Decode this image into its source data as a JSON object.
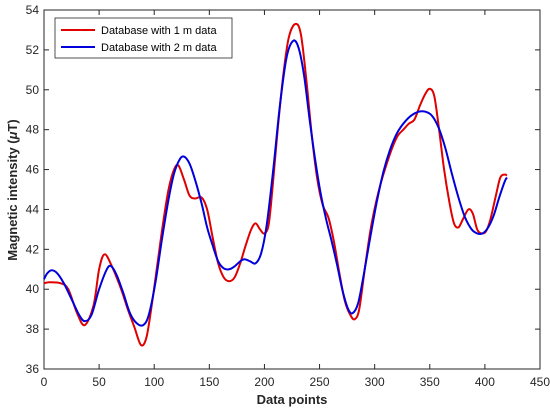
{
  "chart_data": {
    "type": "line",
    "title": "",
    "xlabel": "Data points",
    "ylabel_prefix": "Magnetic intensity (",
    "ylabel_symbol": "μ",
    "ylabel_suffix": "T)",
    "xlim": [
      0,
      450
    ],
    "ylim": [
      36,
      54
    ],
    "xticks": [
      0,
      50,
      100,
      150,
      200,
      250,
      300,
      350,
      400,
      450
    ],
    "yticks": [
      36,
      38,
      40,
      42,
      44,
      46,
      48,
      50,
      52,
      54
    ],
    "grid": false,
    "legend": {
      "placement": "top-left"
    },
    "series": [
      {
        "name": "Database with 1 m data",
        "color": "#e00000",
        "points": [
          [
            0,
            40.3
          ],
          [
            5,
            40.35
          ],
          [
            15,
            40.3
          ],
          [
            22,
            40.0
          ],
          [
            30,
            38.8
          ],
          [
            37,
            38.2
          ],
          [
            45,
            39.2
          ],
          [
            50,
            41.0
          ],
          [
            55,
            41.75
          ],
          [
            62,
            41.1
          ],
          [
            70,
            40.0
          ],
          [
            76,
            39.0
          ],
          [
            82,
            38.1
          ],
          [
            88,
            37.2
          ],
          [
            93,
            37.6
          ],
          [
            98,
            39.3
          ],
          [
            103,
            41.3
          ],
          [
            108,
            43.3
          ],
          [
            113,
            45.0
          ],
          [
            118,
            46.0
          ],
          [
            122,
            46.2
          ],
          [
            127,
            45.5
          ],
          [
            132,
            44.7
          ],
          [
            137,
            44.55
          ],
          [
            143,
            44.6
          ],
          [
            148,
            44.0
          ],
          [
            153,
            42.6
          ],
          [
            158,
            41.3
          ],
          [
            163,
            40.6
          ],
          [
            168,
            40.4
          ],
          [
            173,
            40.6
          ],
          [
            178,
            41.3
          ],
          [
            183,
            42.2
          ],
          [
            188,
            43.0
          ],
          [
            192,
            43.3
          ],
          [
            196,
            43.0
          ],
          [
            200,
            42.8
          ],
          [
            204,
            43.3
          ],
          [
            208,
            45.5
          ],
          [
            212,
            48.0
          ],
          [
            217,
            50.7
          ],
          [
            222,
            52.6
          ],
          [
            228,
            53.3
          ],
          [
            233,
            52.8
          ],
          [
            238,
            50.5
          ],
          [
            243,
            47.7
          ],
          [
            248,
            45.5
          ],
          [
            253,
            44.2
          ],
          [
            258,
            43.6
          ],
          [
            263,
            42.4
          ],
          [
            268,
            40.8
          ],
          [
            273,
            39.4
          ],
          [
            278,
            38.7
          ],
          [
            282,
            38.5
          ],
          [
            286,
            39.0
          ],
          [
            291,
            41.0
          ],
          [
            296,
            42.9
          ],
          [
            301,
            44.3
          ],
          [
            306,
            45.4
          ],
          [
            311,
            46.3
          ],
          [
            316,
            47.1
          ],
          [
            321,
            47.7
          ],
          [
            326,
            48.0
          ],
          [
            331,
            48.3
          ],
          [
            336,
            48.5
          ],
          [
            341,
            49.2
          ],
          [
            346,
            49.8
          ],
          [
            350,
            50.05
          ],
          [
            354,
            49.7
          ],
          [
            358,
            48.2
          ],
          [
            363,
            46.0
          ],
          [
            368,
            44.3
          ],
          [
            372,
            43.3
          ],
          [
            376,
            43.1
          ],
          [
            380,
            43.5
          ],
          [
            385,
            44.0
          ],
          [
            389,
            43.8
          ],
          [
            393,
            43.0
          ],
          [
            397,
            42.8
          ],
          [
            401,
            42.9
          ],
          [
            405,
            43.5
          ],
          [
            410,
            44.7
          ],
          [
            414,
            45.6
          ],
          [
            418,
            45.75
          ],
          [
            420,
            45.7
          ]
        ]
      },
      {
        "name": "Database with 2 m data",
        "color": "#0000dd",
        "points": [
          [
            0,
            40.5
          ],
          [
            3,
            40.8
          ],
          [
            7,
            40.95
          ],
          [
            12,
            40.8
          ],
          [
            18,
            40.3
          ],
          [
            25,
            39.5
          ],
          [
            32,
            38.7
          ],
          [
            37,
            38.4
          ],
          [
            43,
            38.7
          ],
          [
            50,
            40.0
          ],
          [
            57,
            41.0
          ],
          [
            61,
            41.15
          ],
          [
            66,
            40.7
          ],
          [
            72,
            39.8
          ],
          [
            78,
            38.8
          ],
          [
            84,
            38.3
          ],
          [
            90,
            38.2
          ],
          [
            95,
            38.7
          ],
          [
            101,
            40.3
          ],
          [
            107,
            42.5
          ],
          [
            113,
            44.5
          ],
          [
            118,
            45.8
          ],
          [
            123,
            46.5
          ],
          [
            127,
            46.65
          ],
          [
            132,
            46.3
          ],
          [
            137,
            45.5
          ],
          [
            143,
            44.3
          ],
          [
            148,
            43.1
          ],
          [
            153,
            42.2
          ],
          [
            158,
            41.4
          ],
          [
            163,
            41.05
          ],
          [
            168,
            41.0
          ],
          [
            173,
            41.15
          ],
          [
            178,
            41.4
          ],
          [
            182,
            41.5
          ],
          [
            187,
            41.4
          ],
          [
            192,
            41.3
          ],
          [
            197,
            41.8
          ],
          [
            202,
            43.2
          ],
          [
            208,
            46.0
          ],
          [
            214,
            49.2
          ],
          [
            220,
            51.6
          ],
          [
            226,
            52.45
          ],
          [
            231,
            52.1
          ],
          [
            236,
            50.7
          ],
          [
            241,
            48.5
          ],
          [
            246,
            46.5
          ],
          [
            251,
            44.8
          ],
          [
            256,
            43.5
          ],
          [
            261,
            42.4
          ],
          [
            266,
            41.2
          ],
          [
            271,
            39.9
          ],
          [
            276,
            39.0
          ],
          [
            280,
            38.8
          ],
          [
            285,
            39.3
          ],
          [
            290,
            40.7
          ],
          [
            296,
            42.6
          ],
          [
            302,
            44.4
          ],
          [
            308,
            45.9
          ],
          [
            314,
            47.0
          ],
          [
            320,
            47.8
          ],
          [
            326,
            48.3
          ],
          [
            333,
            48.7
          ],
          [
            340,
            48.9
          ],
          [
            346,
            48.9
          ],
          [
            352,
            48.7
          ],
          [
            358,
            48.1
          ],
          [
            364,
            47.1
          ],
          [
            370,
            45.8
          ],
          [
            376,
            44.6
          ],
          [
            382,
            43.6
          ],
          [
            388,
            43.0
          ],
          [
            393,
            42.8
          ],
          [
            398,
            42.8
          ],
          [
            403,
            43.1
          ],
          [
            408,
            43.7
          ],
          [
            413,
            44.6
          ],
          [
            418,
            45.4
          ],
          [
            420,
            45.6
          ]
        ]
      }
    ]
  }
}
